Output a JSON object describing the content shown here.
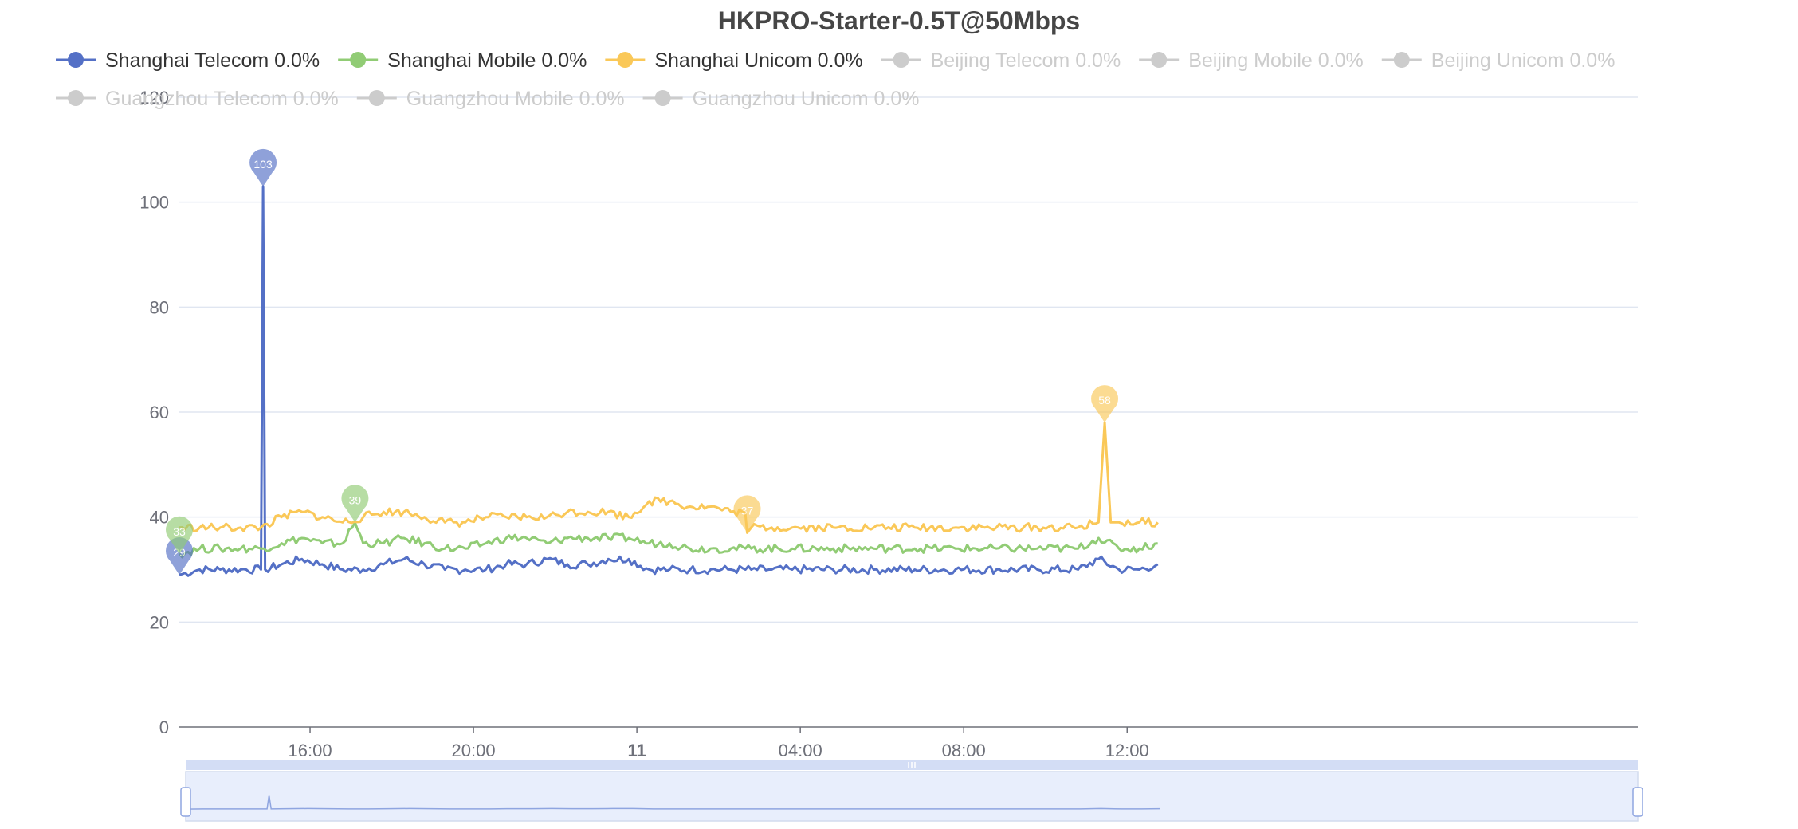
{
  "chart_data": {
    "type": "line",
    "title": "HKPRO-Starter-0.5T@50Mbps",
    "xlabel": "",
    "ylabel": "",
    "ylim": [
      0,
      120
    ],
    "yticks": [
      0,
      20,
      40,
      60,
      80,
      100,
      120
    ],
    "x_range_hours": [
      0,
      35.7
    ],
    "x_tick_labels": [
      {
        "hour": 3.2,
        "label": "16:00",
        "bold": false
      },
      {
        "hour": 7.2,
        "label": "20:00",
        "bold": false
      },
      {
        "hour": 11.2,
        "label": "11",
        "bold": true
      },
      {
        "hour": 15.2,
        "label": "04:00",
        "bold": false
      },
      {
        "hour": 19.2,
        "label": "08:00",
        "bold": false
      },
      {
        "hour": 23.2,
        "label": "12:00",
        "bold": false
      }
    ],
    "grid": true,
    "legend_position": "top-left",
    "series": [
      {
        "name": "Shanghai Telecom 0.0%",
        "color": "#5470c6",
        "active": true,
        "points": [
          [
            0,
            29
          ],
          [
            0.5,
            30
          ],
          [
            1,
            30
          ],
          [
            1.5,
            30
          ],
          [
            2,
            30
          ],
          [
            2.05,
            103
          ],
          [
            2.1,
            30
          ],
          [
            2.5,
            31
          ],
          [
            3,
            32
          ],
          [
            3.5,
            31
          ],
          [
            4,
            30
          ],
          [
            4.5,
            30
          ],
          [
            5,
            31
          ],
          [
            5.5,
            32
          ],
          [
            6,
            31
          ],
          [
            6.5,
            30
          ],
          [
            7,
            30
          ],
          [
            7.5,
            30
          ],
          [
            8,
            31
          ],
          [
            8.5,
            31
          ],
          [
            9,
            32
          ],
          [
            9.5,
            31
          ],
          [
            10,
            31
          ],
          [
            10.5,
            32
          ],
          [
            11,
            32
          ],
          [
            11.5,
            30
          ],
          [
            12,
            30
          ],
          [
            12.5,
            30
          ],
          [
            13,
            30
          ],
          [
            13.5,
            30
          ],
          [
            14,
            30
          ],
          [
            14.5,
            30
          ],
          [
            15,
            30
          ],
          [
            16,
            30
          ],
          [
            17,
            30
          ],
          [
            18,
            30
          ],
          [
            19,
            30
          ],
          [
            20,
            30
          ],
          [
            21,
            30
          ],
          [
            22,
            30
          ],
          [
            22.5,
            32
          ],
          [
            23,
            30
          ],
          [
            23.5,
            30
          ],
          [
            23.95,
            31
          ]
        ],
        "pins": [
          {
            "x": 0,
            "y": 29,
            "label": "29"
          },
          {
            "x": 2.05,
            "y": 103,
            "label": "103"
          }
        ]
      },
      {
        "name": "Shanghai Mobile 0.0%",
        "color": "#91cc75",
        "active": true,
        "points": [
          [
            0,
            33
          ],
          [
            0.5,
            34
          ],
          [
            1,
            34
          ],
          [
            1.5,
            34
          ],
          [
            2,
            34
          ],
          [
            2.5,
            35
          ],
          [
            3,
            36
          ],
          [
            3.5,
            35
          ],
          [
            4,
            35
          ],
          [
            4.3,
            39
          ],
          [
            4.5,
            35
          ],
          [
            5,
            35
          ],
          [
            5.5,
            36
          ],
          [
            6,
            35
          ],
          [
            6.5,
            34
          ],
          [
            7,
            34
          ],
          [
            7.5,
            35
          ],
          [
            8,
            36
          ],
          [
            8.5,
            36
          ],
          [
            9,
            35
          ],
          [
            9.5,
            36
          ],
          [
            10,
            36
          ],
          [
            10.5,
            36
          ],
          [
            11,
            36
          ],
          [
            11.5,
            35
          ],
          [
            12,
            35
          ],
          [
            12.5,
            34
          ],
          [
            13,
            34
          ],
          [
            13.5,
            34
          ],
          [
            14,
            34
          ],
          [
            15,
            34
          ],
          [
            16,
            34
          ],
          [
            17,
            34
          ],
          [
            18,
            34
          ],
          [
            19,
            34
          ],
          [
            20,
            34
          ],
          [
            21,
            34
          ],
          [
            22,
            34
          ],
          [
            22.5,
            36
          ],
          [
            23,
            34
          ],
          [
            23.5,
            34
          ],
          [
            23.95,
            35
          ]
        ],
        "pins": [
          {
            "x": 0,
            "y": 33,
            "label": "33"
          },
          {
            "x": 4.3,
            "y": 39,
            "label": "39"
          }
        ]
      },
      {
        "name": "Shanghai Unicom 0.0%",
        "color": "#fac858",
        "active": true,
        "points": [
          [
            0,
            38
          ],
          [
            0.5,
            38
          ],
          [
            1,
            38
          ],
          [
            1.5,
            38
          ],
          [
            2,
            38
          ],
          [
            2.5,
            40
          ],
          [
            3,
            41
          ],
          [
            3.5,
            40
          ],
          [
            4,
            39
          ],
          [
            4.5,
            40
          ],
          [
            5,
            41
          ],
          [
            5.5,
            41
          ],
          [
            6,
            40
          ],
          [
            6.5,
            39
          ],
          [
            7,
            39
          ],
          [
            7.5,
            40
          ],
          [
            8,
            40
          ],
          [
            8.5,
            40
          ],
          [
            9,
            40
          ],
          [
            9.5,
            41
          ],
          [
            10,
            41
          ],
          [
            10.5,
            41
          ],
          [
            11,
            40
          ],
          [
            11.5,
            43
          ],
          [
            12,
            43
          ],
          [
            12.5,
            42
          ],
          [
            13,
            42
          ],
          [
            13.5,
            41
          ],
          [
            13.85,
            41
          ],
          [
            13.9,
            37
          ],
          [
            14,
            38
          ],
          [
            14.5,
            38
          ],
          [
            15,
            38
          ],
          [
            16,
            38
          ],
          [
            17,
            38
          ],
          [
            18,
            38
          ],
          [
            19,
            38
          ],
          [
            20,
            38
          ],
          [
            21,
            38
          ],
          [
            22,
            38
          ],
          [
            22.5,
            39
          ],
          [
            22.65,
            58
          ],
          [
            22.8,
            39
          ],
          [
            23,
            39
          ],
          [
            23.5,
            39
          ],
          [
            23.95,
            39
          ]
        ],
        "pins": [
          {
            "x": 13.9,
            "y": 37,
            "label": "37"
          },
          {
            "x": 22.65,
            "y": 58,
            "label": "58"
          }
        ]
      },
      {
        "name": "Beijing Telecom 0.0%",
        "color": "#cccccc",
        "active": false,
        "points": [],
        "pins": []
      },
      {
        "name": "Beijing Mobile 0.0%",
        "color": "#cccccc",
        "active": false,
        "points": [],
        "pins": []
      },
      {
        "name": "Beijing Unicom 0.0%",
        "color": "#cccccc",
        "active": false,
        "points": [],
        "pins": []
      },
      {
        "name": "Guangzhou Telecom 0.0%",
        "color": "#cccccc",
        "active": false,
        "points": [],
        "pins": []
      },
      {
        "name": "Guangzhou Mobile 0.0%",
        "color": "#cccccc",
        "active": false,
        "points": [],
        "pins": []
      },
      {
        "name": "Guangzhou Unicom 0.0%",
        "color": "#cccccc",
        "active": false,
        "points": [],
        "pins": []
      }
    ],
    "datazoom": {
      "start_percent": 0,
      "end_percent": 100
    }
  }
}
